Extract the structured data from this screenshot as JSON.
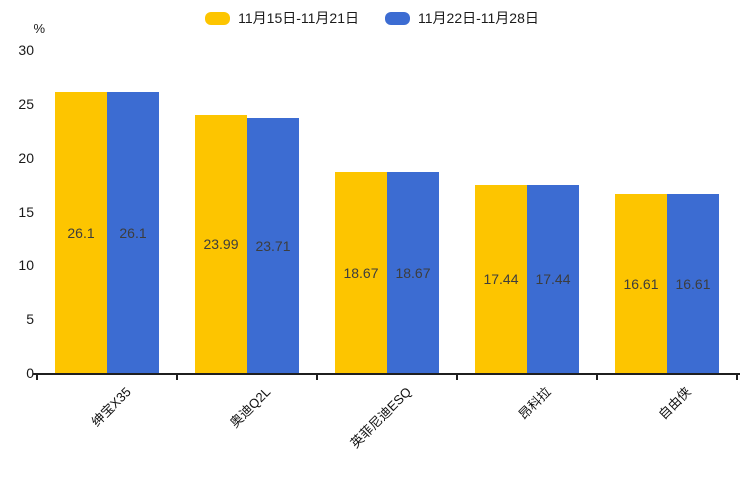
{
  "chart_data": {
    "type": "bar",
    "title": "",
    "categories": [
      "绅宝X35",
      "奥迪Q2L",
      "英菲尼迪ESQ",
      "昂科拉",
      "自由侠"
    ],
    "series": [
      {
        "name": "11月15日-11月21日",
        "color": "#FDC500",
        "values": [
          26.1,
          23.99,
          18.67,
          17.44,
          16.61
        ]
      },
      {
        "name": "11月22日-11月28日",
        "color": "#3C6CD2",
        "values": [
          26.1,
          23.71,
          18.67,
          17.44,
          16.61
        ]
      }
    ],
    "bar_value_labels": [
      "26.1",
      "23.99",
      "18.67",
      "17.44",
      "16.61",
      "26.1",
      "23.71",
      "18.67",
      "17.44",
      "16.61"
    ],
    "xlabel": "",
    "ylabel": "%",
    "ylim": [
      0,
      30
    ],
    "yticks": [
      0,
      5,
      10,
      15,
      20,
      25,
      30
    ],
    "legend_position": "top",
    "grid": false,
    "category_label_rotation_deg": 45
  },
  "axis": {
    "unit_label": "%"
  },
  "colors": {
    "background": "#ffffff",
    "axis": "#1f1f1f",
    "tick_label": "#1a1a1a",
    "value_label": "#3d3d3d",
    "series_yellow": "#FDC500",
    "series_blue": "#3C6CD2"
  }
}
